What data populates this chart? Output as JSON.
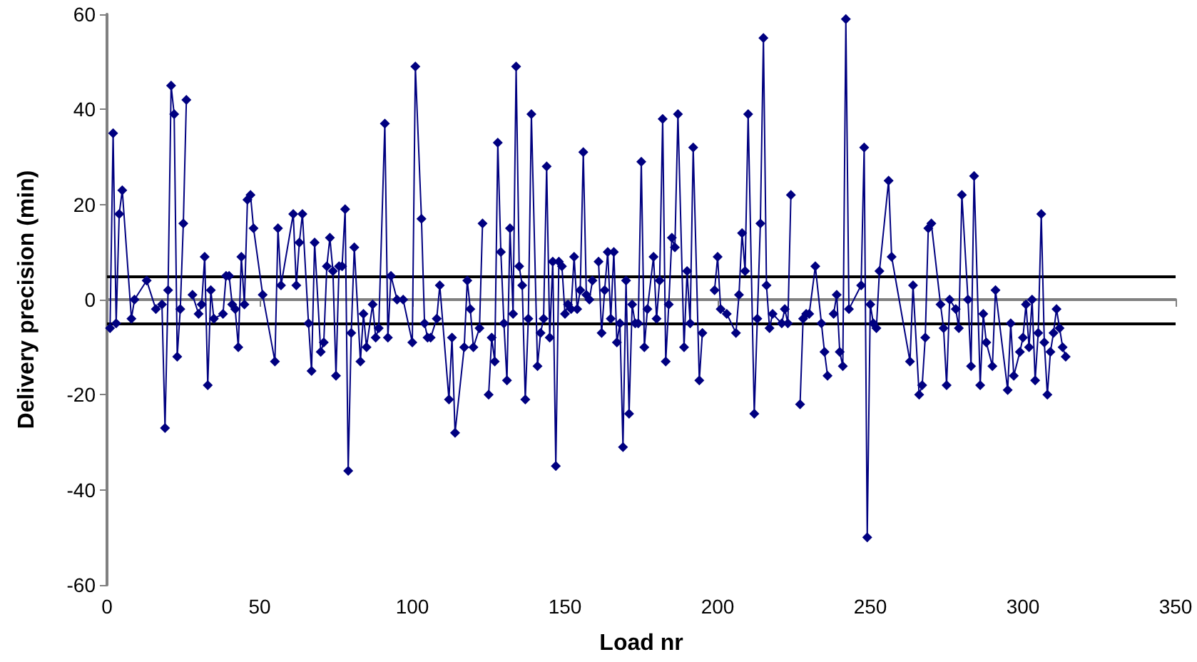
{
  "chart_data": {
    "type": "line",
    "xlabel": "Load nr",
    "ylabel": "Delivery precision (min)",
    "xlim": [
      0,
      350
    ],
    "xticks": [
      0,
      50,
      100,
      150,
      200,
      250,
      300,
      350
    ],
    "ylim": [
      -60,
      60
    ],
    "yticks": [
      -60,
      -40,
      -20,
      0,
      20,
      40,
      60
    ],
    "marker": "diamond",
    "line_style": "solid",
    "ref_lines": [
      {
        "axis": "y",
        "value": 5,
        "color": "#000000"
      },
      {
        "axis": "y",
        "value": -5,
        "color": "#000000"
      }
    ],
    "series": [
      {
        "color": "#000080",
        "x": [
          1,
          2,
          3,
          4,
          5,
          8,
          9,
          13,
          16,
          18,
          19,
          20,
          21,
          22,
          23,
          24,
          25,
          26,
          27,
          28,
          30,
          31,
          32,
          33,
          34,
          35,
          38,
          39,
          40,
          41,
          42,
          43,
          44,
          45,
          46,
          47,
          48,
          51,
          55,
          56,
          57,
          61,
          62,
          63,
          64,
          66,
          67,
          68,
          70,
          71,
          72,
          73,
          74,
          75,
          76,
          77,
          78,
          79,
          80,
          81,
          83,
          84,
          85,
          87,
          88,
          89,
          91,
          92,
          93,
          95,
          97,
          100,
          101,
          103,
          104,
          105,
          106,
          108,
          109,
          112,
          113,
          114,
          117,
          118,
          119,
          120,
          122,
          123,
          124,
          125,
          126,
          127,
          128,
          129,
          130,
          131,
          132,
          133,
          134,
          135,
          136,
          137,
          138,
          139,
          141,
          142,
          143,
          144,
          145,
          146,
          147,
          148,
          149,
          150,
          151,
          152,
          153,
          154,
          155,
          156,
          157,
          158,
          159,
          160,
          161,
          162,
          163,
          164,
          165,
          166,
          167,
          168,
          169,
          170,
          171,
          172,
          173,
          174,
          175,
          176,
          177,
          179,
          180,
          181,
          182,
          183,
          184,
          185,
          186,
          187,
          189,
          190,
          191,
          192,
          194,
          195,
          196,
          199,
          200,
          201,
          203,
          206,
          207,
          208,
          209,
          210,
          212,
          213,
          214,
          215,
          216,
          217,
          218,
          221,
          222,
          223,
          224,
          225,
          227,
          228,
          229,
          230,
          232,
          234,
          235,
          236,
          237,
          238,
          239,
          240,
          241,
          242,
          243,
          247,
          248,
          249,
          250,
          251,
          252,
          253,
          256,
          257,
          263,
          264,
          266,
          267,
          268,
          269,
          270,
          273,
          274,
          275,
          276,
          278,
          279,
          280,
          282,
          283,
          284,
          286,
          287,
          288,
          290,
          291,
          295,
          296,
          297,
          299,
          300,
          301,
          302,
          303,
          304,
          305,
          306,
          307,
          308,
          309,
          310,
          311,
          312,
          313,
          314
        ],
        "values": [
          -6,
          35,
          -5,
          18,
          23,
          -4,
          0,
          4,
          -2,
          -1,
          -27,
          2,
          45,
          39,
          -12,
          -2,
          16,
          42,
          null,
          1,
          -3,
          -1,
          9,
          -18,
          2,
          -4,
          -3,
          5,
          5,
          -1,
          -2,
          -10,
          9,
          -1,
          21,
          22,
          15,
          1,
          -13,
          15,
          3,
          18,
          3,
          12,
          18,
          -5,
          -15,
          12,
          -11,
          -9,
          7,
          13,
          6,
          -16,
          7,
          7,
          19,
          -36,
          -7,
          11,
          -13,
          -3,
          -10,
          -1,
          -8,
          -6,
          37,
          -8,
          5,
          0,
          0,
          -9,
          49,
          17,
          -5,
          -8,
          -8,
          -4,
          3,
          -21,
          -8,
          -28,
          -10,
          4,
          -2,
          -10,
          -6,
          16,
          null,
          -20,
          -8,
          -13,
          33,
          10,
          -5,
          -17,
          15,
          -3,
          49,
          7,
          3,
          -21,
          -4,
          39,
          -14,
          -7,
          -4,
          28,
          -8,
          8,
          -35,
          8,
          7,
          -3,
          -1,
          -2,
          9,
          -2,
          2,
          31,
          1,
          0,
          4,
          null,
          8,
          -7,
          2,
          10,
          -4,
          10,
          -9,
          -5,
          -31,
          4,
          -24,
          -1,
          -5,
          -5,
          29,
          -10,
          -2,
          9,
          -4,
          4,
          38,
          -13,
          -1,
          13,
          11,
          39,
          -10,
          6,
          -5,
          32,
          -17,
          -7,
          null,
          2,
          9,
          -2,
          -3,
          -7,
          1,
          14,
          6,
          39,
          -24,
          -4,
          16,
          55,
          3,
          -6,
          -3,
          -5,
          -2,
          -5,
          22,
          null,
          -22,
          -4,
          -3,
          -3,
          7,
          -5,
          -11,
          -16,
          null,
          -3,
          1,
          -11,
          -14,
          59,
          -2,
          3,
          32,
          -50,
          -1,
          -5,
          -6,
          6,
          25,
          9,
          -13,
          3,
          -20,
          -18,
          -8,
          15,
          16,
          -1,
          -6,
          -18,
          0,
          -2,
          -6,
          22,
          0,
          -14,
          26,
          -18,
          -3,
          -9,
          -14,
          2,
          -19,
          -5,
          -16,
          -11,
          -8,
          -1,
          -10,
          0,
          -17,
          -7,
          18,
          -9,
          -20,
          -11,
          -7,
          -2,
          -6,
          -10,
          -12
        ]
      }
    ]
  }
}
